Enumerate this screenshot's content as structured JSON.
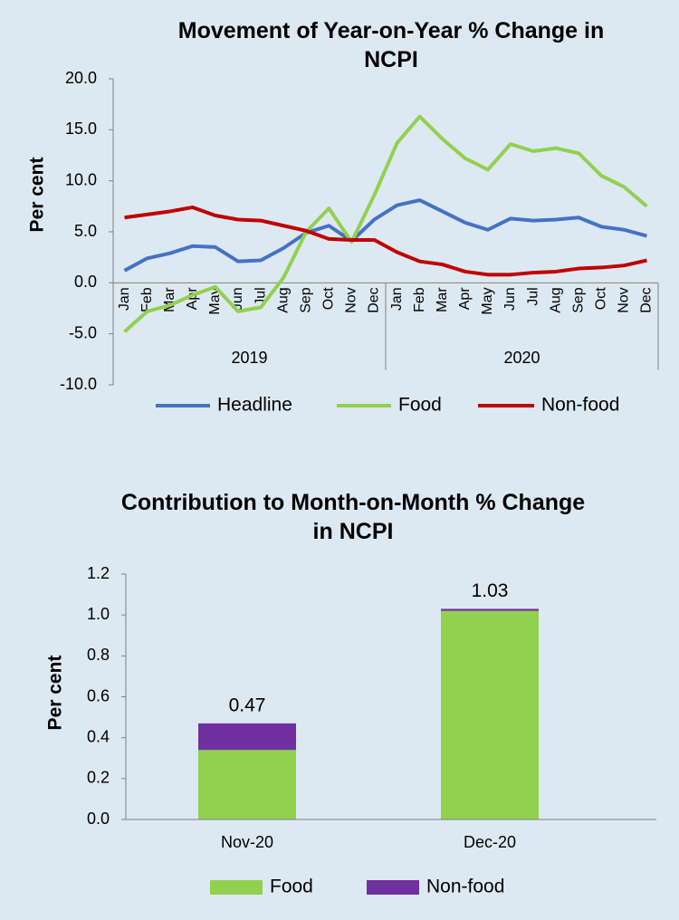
{
  "chart_data": [
    {
      "type": "line",
      "title": "Movement of Year-on-Year % Change in NCPI",
      "y_label": "Per cent",
      "categories": [
        "Jan",
        "Feb",
        "Mar",
        "Apr",
        "May",
        "Jun",
        "Jul",
        "Aug",
        "Sep",
        "Oct",
        "Nov",
        "Dec",
        "Jan",
        "Feb",
        "Mar",
        "Apr",
        "May",
        "Jun",
        "Jul",
        "Aug",
        "Sep",
        "Oct",
        "Nov",
        "Dec"
      ],
      "category_groups": [
        "2019",
        "2020"
      ],
      "series": [
        {
          "name": "Headline",
          "color": "#4472c4",
          "values": [
            1.2,
            2.4,
            2.9,
            3.6,
            3.5,
            2.1,
            2.2,
            3.4,
            4.9,
            5.6,
            4.1,
            6.2,
            7.6,
            8.1,
            7.0,
            5.9,
            5.2,
            6.3,
            6.1,
            6.2,
            6.4,
            5.5,
            5.2,
            4.6
          ]
        },
        {
          "name": "Food",
          "color": "#92d050",
          "values": [
            -4.8,
            -2.8,
            -2.2,
            -1.2,
            -0.4,
            -2.8,
            -2.4,
            0.5,
            5.0,
            7.3,
            4.0,
            8.6,
            13.7,
            16.3,
            14.1,
            12.2,
            11.1,
            13.6,
            12.9,
            13.2,
            12.7,
            10.5,
            9.4,
            7.5
          ]
        },
        {
          "name": "Non-food",
          "color": "#c00000",
          "values": [
            6.4,
            6.7,
            7.0,
            7.4,
            6.6,
            6.2,
            6.1,
            5.6,
            5.1,
            4.3,
            4.2,
            4.2,
            3.0,
            2.1,
            1.8,
            1.1,
            0.8,
            0.8,
            1.0,
            1.1,
            1.4,
            1.5,
            1.7,
            2.2
          ]
        }
      ],
      "ylim": [
        -10,
        20
      ],
      "yticks": [
        {
          "value": -10,
          "label": "-10.0"
        },
        {
          "value": -5,
          "label": "-5.0"
        },
        {
          "value": 0,
          "label": "0.0"
        },
        {
          "value": 5,
          "label": "5.0"
        },
        {
          "value": 10,
          "label": "10.0"
        },
        {
          "value": 15,
          "label": "15.0"
        },
        {
          "value": 20,
          "label": "20.0"
        }
      ],
      "legend": "bottom"
    },
    {
      "type": "bar",
      "title": "Contribution to Month-on-Month % Change in NCPI",
      "y_label": "Per cent",
      "categories": [
        "Nov-20",
        "Dec-20"
      ],
      "series": [
        {
          "name": "Food",
          "color": "#92d050",
          "values": [
            0.34,
            1.02
          ]
        },
        {
          "name": "Non-food",
          "color": "#7030a0",
          "values": [
            0.13,
            0.01
          ]
        }
      ],
      "totals": [
        0.47,
        1.03
      ],
      "stacked": true,
      "ylim": [
        0,
        1.2
      ],
      "yticks": [
        {
          "value": 0,
          "label": "0.0"
        },
        0.2,
        0.4,
        0.6,
        0.8,
        {
          "value": 1,
          "label": "1.0"
        },
        1.2
      ],
      "legend": "bottom"
    }
  ]
}
